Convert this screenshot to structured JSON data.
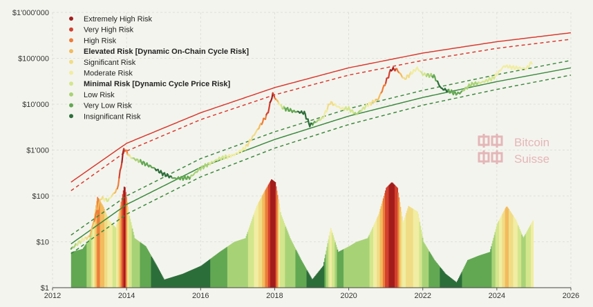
{
  "chart_data": {
    "type": "line",
    "title": "",
    "xlabel": "",
    "ylabel": "",
    "y_scale": "log",
    "xlim": [
      2012,
      2026
    ],
    "ylim": [
      1,
      1000000
    ],
    "grid": true,
    "legend_position": "top-left",
    "x_ticks": [
      "2012",
      "2014",
      "2016",
      "2018",
      "2020",
      "2022",
      "2024",
      "2026"
    ],
    "y_ticks": [
      {
        "value": 1,
        "label": "$1"
      },
      {
        "value": 10,
        "label": "$10"
      },
      {
        "value": 100,
        "label": "$100"
      },
      {
        "value": 1000,
        "label": "$1'000"
      },
      {
        "value": 10000,
        "label": "$10'000"
      },
      {
        "value": 100000,
        "label": "$100'000"
      },
      {
        "value": 1000000,
        "label": "$1'000'000"
      }
    ],
    "legend": [
      {
        "label": "Extremely High Risk",
        "color": "#a31d1d",
        "bold": false
      },
      {
        "label": "Very High Risk",
        "color": "#d2402f",
        "bold": false
      },
      {
        "label": "High Risk",
        "color": "#ec7d3a",
        "bold": false
      },
      {
        "label": "Elevated Risk [Dynamic On-Chain Cycle Risk]",
        "color": "#f2bb5e",
        "bold": true
      },
      {
        "label": "Significant Risk",
        "color": "#f1dc86",
        "bold": false
      },
      {
        "label": "Moderate Risk",
        "color": "#f1eda2",
        "bold": false
      },
      {
        "label": "Minimal Risk [Dynamic Cycle Price Risk]",
        "color": "#d3e68d",
        "bold": true
      },
      {
        "label": "Low Risk",
        "color": "#a8d276",
        "bold": false
      },
      {
        "label": "Very Low Risk",
        "color": "#62a852",
        "bold": false
      },
      {
        "label": "Insignificant Risk",
        "color": "#2c6e3a",
        "bold": false
      }
    ],
    "series": [
      {
        "kind": "price",
        "x": [
          2012.5,
          2012.8,
          2013.0,
          2013.3,
          2013.5,
          2013.75,
          2013.93,
          2014.1,
          2014.4,
          2014.7,
          2015.0,
          2015.3,
          2015.7,
          2016.0,
          2016.5,
          2016.9,
          2017.2,
          2017.5,
          2017.8,
          2017.95,
          2018.0,
          2018.2,
          2018.5,
          2018.8,
          2018.95,
          2019.3,
          2019.5,
          2019.8,
          2020.0,
          2020.2,
          2020.5,
          2020.8,
          2021.0,
          2021.15,
          2021.3,
          2021.5,
          2021.85,
          2022.0,
          2022.3,
          2022.5,
          2022.9,
          2023.0,
          2023.3,
          2023.6,
          2023.9,
          2024.2,
          2024.5,
          2024.8,
          2024.97
        ],
        "y": [
          7,
          11,
          13,
          90,
          80,
          140,
          1100,
          700,
          550,
          420,
          300,
          240,
          250,
          400,
          650,
          780,
          1100,
          2500,
          6000,
          17000,
          14000,
          8500,
          7000,
          6500,
          3500,
          5000,
          11000,
          8000,
          8000,
          6000,
          9500,
          13000,
          30000,
          58000,
          57000,
          35000,
          61000,
          45000,
          41000,
          22000,
          17000,
          17500,
          27000,
          30000,
          37000,
          68000,
          62000,
          60000,
          88000
        ],
        "color_stops": [
          {
            "x": 2012.5,
            "risk": 8
          },
          {
            "x": 2013.2,
            "risk": 2
          },
          {
            "x": 2013.5,
            "risk": 6
          },
          {
            "x": 2013.93,
            "risk": 0
          },
          {
            "x": 2014.2,
            "risk": 7
          },
          {
            "x": 2015.0,
            "risk": 9
          },
          {
            "x": 2016.5,
            "risk": 6
          },
          {
            "x": 2017.5,
            "risk": 4
          },
          {
            "x": 2017.95,
            "risk": 0
          },
          {
            "x": 2018.3,
            "risk": 8
          },
          {
            "x": 2019.0,
            "risk": 9
          },
          {
            "x": 2019.5,
            "risk": 4
          },
          {
            "x": 2020.3,
            "risk": 7
          },
          {
            "x": 2021.2,
            "risk": 0
          },
          {
            "x": 2021.5,
            "risk": 4
          },
          {
            "x": 2021.9,
            "risk": 5
          },
          {
            "x": 2022.5,
            "risk": 9
          },
          {
            "x": 2023.3,
            "risk": 7
          },
          {
            "x": 2024.2,
            "risk": 5
          },
          {
            "x": 2024.97,
            "risk": 5
          }
        ]
      },
      {
        "kind": "band",
        "style": "solid",
        "color": "#d93a30",
        "x": [
          2012.5,
          2014,
          2016,
          2018,
          2020,
          2022,
          2024,
          2026
        ],
        "y": [
          200,
          1400,
          6500,
          23000,
          62000,
          130000,
          230000,
          360000
        ]
      },
      {
        "kind": "band",
        "style": "dashed",
        "color": "#d93a30",
        "x": [
          2012.5,
          2014,
          2016,
          2018,
          2020,
          2022,
          2024,
          2026
        ],
        "y": [
          130,
          950,
          4600,
          16000,
          43000,
          90000,
          165000,
          260000
        ]
      },
      {
        "kind": "band",
        "style": "dashed",
        "color": "#3a8a3e",
        "x": [
          2012.5,
          2014,
          2016,
          2018,
          2020,
          2022,
          2024,
          2026
        ],
        "y": [
          14,
          100,
          650,
          2500,
          8000,
          20000,
          44000,
          90000
        ]
      },
      {
        "kind": "band",
        "style": "solid",
        "color": "#3a8a3e",
        "x": [
          2012.5,
          2014,
          2016,
          2018,
          2020,
          2022,
          2024,
          2026
        ],
        "y": [
          9,
          65,
          420,
          1700,
          5500,
          14000,
          31000,
          62000
        ]
      },
      {
        "kind": "band",
        "style": "dashed",
        "color": "#3a8a3e",
        "x": [
          2012.5,
          2014,
          2016,
          2018,
          2020,
          2022,
          2024,
          2026
        ],
        "y": [
          5.5,
          40,
          260,
          1100,
          3600,
          9500,
          21000,
          43000
        ]
      }
    ],
    "risk_histogram": {
      "x": [
        2012.5,
        2012.8,
        2013.0,
        2013.2,
        2013.35,
        2013.5,
        2013.7,
        2013.93,
        2014.05,
        2014.2,
        2014.5,
        2014.8,
        2015.0,
        2015.5,
        2016.0,
        2016.5,
        2016.9,
        2017.2,
        2017.5,
        2017.7,
        2017.9,
        2018.0,
        2018.15,
        2018.4,
        2018.7,
        2019.0,
        2019.3,
        2019.5,
        2019.7,
        2020.0,
        2020.2,
        2020.5,
        2020.8,
        2021.0,
        2021.15,
        2021.3,
        2021.45,
        2021.6,
        2021.85,
        2022.0,
        2022.3,
        2022.6,
        2022.9,
        2023.2,
        2023.5,
        2023.8,
        2024.0,
        2024.25,
        2024.5,
        2024.7,
        2024.97
      ],
      "y": [
        6,
        7,
        12,
        95,
        60,
        30,
        20,
        175,
        40,
        12,
        8,
        3,
        1.5,
        2,
        3,
        6,
        10,
        12,
        60,
        120,
        230,
        200,
        40,
        12,
        4,
        1.5,
        3,
        20,
        6,
        8,
        10,
        12,
        40,
        150,
        200,
        150,
        25,
        60,
        45,
        10,
        4,
        2,
        1.3,
        4,
        5,
        6,
        25,
        60,
        30,
        12,
        30
      ],
      "risk": [
        8,
        8,
        7,
        2,
        3,
        5,
        6,
        0,
        6,
        7,
        8,
        9,
        9,
        9,
        9,
        8,
        7,
        7,
        5,
        3,
        0,
        0,
        6,
        7,
        8,
        9,
        9,
        5,
        8,
        7,
        7,
        7,
        4,
        1,
        0,
        1,
        5,
        4,
        5,
        7,
        8,
        9,
        9,
        8,
        8,
        8,
        6,
        3,
        5,
        7,
        5
      ]
    }
  },
  "watermark": {
    "line1": "Bitcoin",
    "line2": "Suisse"
  }
}
